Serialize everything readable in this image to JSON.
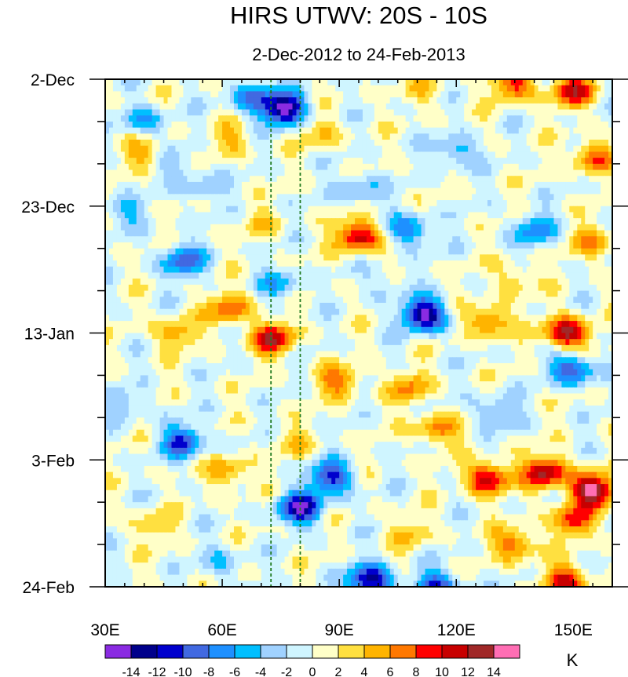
{
  "chart_data": {
    "type": "heatmap",
    "title": "HIRS UTWV: 20S - 10S",
    "subtitle": "2-Dec-2012 to 24-Feb-2013",
    "xlabel": "",
    "ylabel": "",
    "x_range_deg_east": [
      30,
      160
    ],
    "x_ticks": [
      {
        "value": 30,
        "label": "30E"
      },
      {
        "value": 60,
        "label": "60E"
      },
      {
        "value": 90,
        "label": "90E"
      },
      {
        "value": 120,
        "label": "120E"
      },
      {
        "value": 150,
        "label": "150E"
      }
    ],
    "y_range_days_from_start": [
      0,
      84
    ],
    "y_ticks": [
      {
        "value": 0,
        "label": "2-Dec"
      },
      {
        "value": 21,
        "label": "23-Dec"
      },
      {
        "value": 42,
        "label": "13-Jan"
      },
      {
        "value": 63,
        "label": "3-Feb"
      },
      {
        "value": 84,
        "label": "24-Feb"
      }
    ],
    "reference_lines_deg_east": [
      72.5,
      80
    ],
    "colorbar": {
      "unit": "K",
      "levels": [
        -14,
        -12,
        -10,
        -8,
        -6,
        -4,
        -2,
        0,
        2,
        4,
        6,
        8,
        10,
        12,
        14
      ],
      "level_labels": [
        "-14",
        "-12",
        "-10",
        "-8",
        "-6",
        "-4",
        "-2",
        "0",
        "2",
        "4",
        "6",
        "8",
        "10",
        "12",
        "14"
      ],
      "colors": [
        "#8a2be2",
        "#00008b",
        "#0000cd",
        "#4169e1",
        "#1e90ff",
        "#00bfff",
        "#a0d2ff",
        "#cff5ff",
        "#ffffc8",
        "#ffe040",
        "#ffb400",
        "#ff7800",
        "#ff0000",
        "#c80000",
        "#a02828",
        "#ff6eb4"
      ]
    },
    "anomaly_features": [
      {
        "lon": 76,
        "day": 5,
        "value": -15
      },
      {
        "lon": 68,
        "day": 3,
        "value": -8
      },
      {
        "lon": 40,
        "day": 7,
        "value": -6
      },
      {
        "lon": 48,
        "day": 14,
        "value": -3
      },
      {
        "lon": 55,
        "day": 18,
        "value": -4
      },
      {
        "lon": 35,
        "day": 22,
        "value": -4
      },
      {
        "lon": 50,
        "day": 30,
        "value": -9
      },
      {
        "lon": 75,
        "day": 34,
        "value": -5
      },
      {
        "lon": 108,
        "day": 25,
        "value": -8
      },
      {
        "lon": 140,
        "day": 25,
        "value": -7
      },
      {
        "lon": 112,
        "day": 39,
        "value": -15
      },
      {
        "lon": 95,
        "day": 18,
        "value": -5
      },
      {
        "lon": 120,
        "day": 12,
        "value": -6
      },
      {
        "lon": 150,
        "day": 48,
        "value": -10
      },
      {
        "lon": 50,
        "day": 60,
        "value": -10
      },
      {
        "lon": 35,
        "day": 54,
        "value": -4
      },
      {
        "lon": 88,
        "day": 66,
        "value": -11
      },
      {
        "lon": 80,
        "day": 71,
        "value": -13
      },
      {
        "lon": 98,
        "day": 83,
        "value": -14
      },
      {
        "lon": 115,
        "day": 84,
        "value": -10
      },
      {
        "lon": 60,
        "day": 80,
        "value": -4
      },
      {
        "lon": 102,
        "day": 34,
        "value": -3
      },
      {
        "lon": 130,
        "day": 55,
        "value": -5
      },
      {
        "lon": 150,
        "day": 2,
        "value": 10
      },
      {
        "lon": 135,
        "day": 1,
        "value": 9
      },
      {
        "lon": 155,
        "day": 13,
        "value": 8
      },
      {
        "lon": 95,
        "day": 26,
        "value": 12
      },
      {
        "lon": 62,
        "day": 38,
        "value": 8
      },
      {
        "lon": 48,
        "day": 42,
        "value": 6
      },
      {
        "lon": 73,
        "day": 43,
        "value": 11
      },
      {
        "lon": 148,
        "day": 42,
        "value": 13
      },
      {
        "lon": 128,
        "day": 40,
        "value": 8
      },
      {
        "lon": 155,
        "day": 27,
        "value": 6
      },
      {
        "lon": 90,
        "day": 50,
        "value": 7
      },
      {
        "lon": 108,
        "day": 51,
        "value": 6
      },
      {
        "lon": 115,
        "day": 58,
        "value": 7
      },
      {
        "lon": 128,
        "day": 66,
        "value": 12
      },
      {
        "lon": 143,
        "day": 65,
        "value": 13
      },
      {
        "lon": 155,
        "day": 68,
        "value": 15
      },
      {
        "lon": 150,
        "day": 73,
        "value": 9
      },
      {
        "lon": 135,
        "day": 77,
        "value": 8
      },
      {
        "lon": 62,
        "day": 65,
        "value": 6
      },
      {
        "lon": 78,
        "day": 60,
        "value": 3
      },
      {
        "lon": 42,
        "day": 74,
        "value": 4
      },
      {
        "lon": 148,
        "day": 83,
        "value": 10
      },
      {
        "lon": 108,
        "day": 75,
        "value": 4
      },
      {
        "lon": 85,
        "day": 9,
        "value": 4
      },
      {
        "lon": 40,
        "day": 12,
        "value": 5
      },
      {
        "lon": 62,
        "day": 10,
        "value": 4
      },
      {
        "lon": 112,
        "day": 2,
        "value": 3
      },
      {
        "lon": 70,
        "day": 24,
        "value": 3
      },
      {
        "lon": 135,
        "day": 33,
        "value": 4
      }
    ]
  }
}
